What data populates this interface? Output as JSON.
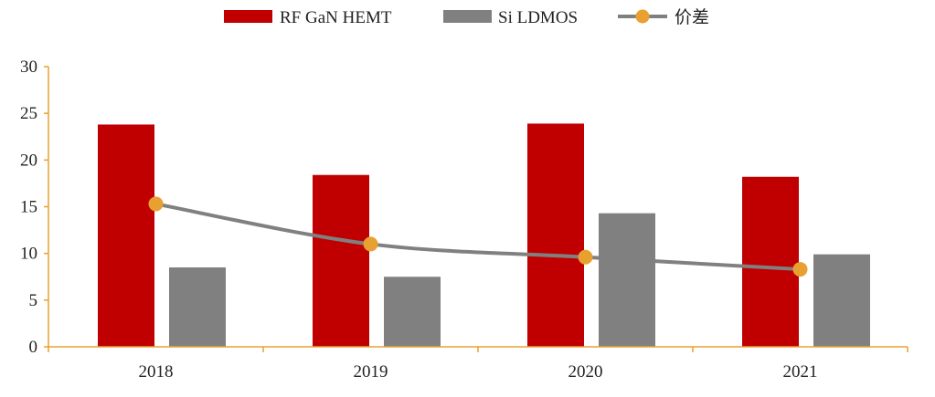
{
  "chart_data": {
    "type": "bar",
    "categories": [
      "2018",
      "2019",
      "2020",
      "2021"
    ],
    "series": [
      {
        "name": "RF GaN HEMT",
        "type": "bar",
        "color": "#c00000",
        "values": [
          23.8,
          18.4,
          23.9,
          18.2
        ]
      },
      {
        "name": "Si LDMOS",
        "type": "bar",
        "color": "#808080",
        "values": [
          8.5,
          7.5,
          14.3,
          9.9
        ]
      },
      {
        "name": "价差",
        "type": "line",
        "color": "#808080",
        "marker_color": "#e8a030",
        "values": [
          15.3,
          11.0,
          9.6,
          8.3
        ]
      }
    ],
    "ylim": [
      0,
      30
    ],
    "yticks": [
      0,
      5,
      10,
      15,
      20,
      25,
      30
    ],
    "axis_color": "#e8a030",
    "grid": false,
    "legend_position": "top-center"
  }
}
